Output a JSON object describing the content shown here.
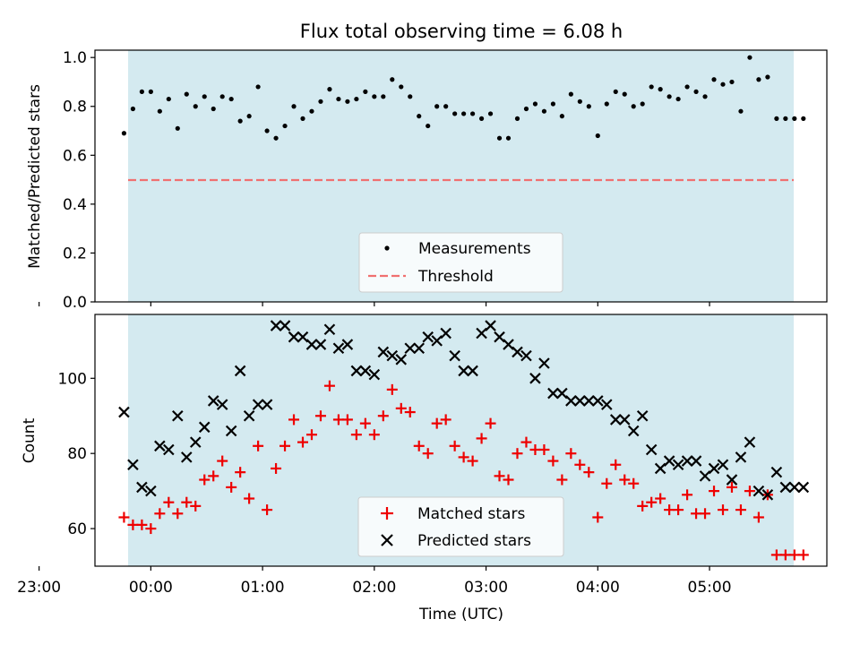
{
  "figure": {
    "title": "Flux total observing time = 6.08 h",
    "xlabel": "Time (UTC)",
    "time_ticks": [
      "23:00",
      "00:00",
      "01:00",
      "02:00",
      "03:00",
      "04:00",
      "05:00"
    ]
  },
  "chart_data": [
    {
      "type": "scatter",
      "panel": "top",
      "ylabel": "Matched/Predicted stars",
      "ylim": [
        0,
        1.03
      ],
      "yticks": [
        "0.0",
        "0.2",
        "0.4",
        "0.6",
        "0.8",
        "1.0"
      ],
      "xlim_hours": [
        -0.5,
        6.05
      ],
      "observing_window_hours": [
        -0.24,
        5.84
      ],
      "grid": false,
      "legend_position": "lower center",
      "series": [
        {
          "name": "Measurements",
          "x_hours": [
            -0.24,
            -0.16,
            -0.08,
            0.0,
            0.08,
            0.16,
            0.24,
            0.32,
            0.4,
            0.48,
            0.56,
            0.64,
            0.72,
            0.8,
            0.88,
            0.96,
            1.04,
            1.12,
            1.2,
            1.28,
            1.36,
            1.44,
            1.52,
            1.6,
            1.68,
            1.76,
            1.84,
            1.92,
            2.0,
            2.08,
            2.16,
            2.24,
            2.32,
            2.4,
            2.48,
            2.56,
            2.64,
            2.72,
            2.8,
            2.88,
            2.96,
            3.04,
            3.12,
            3.2,
            3.28,
            3.36,
            3.44,
            3.52,
            3.6,
            3.68,
            3.76,
            3.84,
            3.92,
            4.0,
            4.08,
            4.16,
            4.24,
            4.32,
            4.4,
            4.48,
            4.56,
            4.64,
            4.72,
            4.8,
            4.88,
            4.96,
            5.04,
            5.12,
            5.2,
            5.28,
            5.36,
            5.44,
            5.52,
            5.6,
            5.68,
            5.76,
            5.84
          ],
          "y": [
            0.69,
            0.79,
            0.86,
            0.86,
            0.78,
            0.83,
            0.71,
            0.85,
            0.8,
            0.84,
            0.79,
            0.84,
            0.83,
            0.74,
            0.76,
            0.88,
            0.7,
            0.67,
            0.72,
            0.8,
            0.75,
            0.78,
            0.82,
            0.87,
            0.83,
            0.82,
            0.83,
            0.86,
            0.84,
            0.84,
            0.91,
            0.88,
            0.84,
            0.76,
            0.72,
            0.8,
            0.8,
            0.77,
            0.77,
            0.77,
            0.75,
            0.77,
            0.67,
            0.67,
            0.75,
            0.79,
            0.81,
            0.78,
            0.81,
            0.76,
            0.85,
            0.82,
            0.8,
            0.68,
            0.81,
            0.86,
            0.85,
            0.8,
            0.81,
            0.88,
            0.87,
            0.84,
            0.83,
            0.88,
            0.86,
            0.84,
            0.91,
            0.89,
            0.9,
            0.78,
            1.0,
            0.91,
            0.92,
            0.75,
            0.75,
            0.75,
            0.75
          ]
        },
        {
          "name": "Threshold",
          "style": "dashed",
          "y_constant": 0.5
        }
      ]
    },
    {
      "type": "scatter",
      "panel": "bottom",
      "ylabel": "Count",
      "ylim": [
        50,
        117
      ],
      "yticks": [
        "60",
        "80",
        "100"
      ],
      "xlim_hours": [
        -0.5,
        6.05
      ],
      "observing_window_hours": [
        -0.24,
        5.84
      ],
      "grid": false,
      "legend_position": "lower center",
      "x_hours": [
        -0.24,
        -0.16,
        -0.08,
        0.0,
        0.08,
        0.16,
        0.24,
        0.32,
        0.4,
        0.48,
        0.56,
        0.64,
        0.72,
        0.8,
        0.88,
        0.96,
        1.04,
        1.12,
        1.2,
        1.28,
        1.36,
        1.44,
        1.52,
        1.6,
        1.68,
        1.76,
        1.84,
        1.92,
        2.0,
        2.08,
        2.16,
        2.24,
        2.32,
        2.4,
        2.48,
        2.56,
        2.64,
        2.72,
        2.8,
        2.88,
        2.96,
        3.04,
        3.12,
        3.2,
        3.28,
        3.36,
        3.44,
        3.52,
        3.6,
        3.68,
        3.76,
        3.84,
        3.92,
        4.0,
        4.08,
        4.16,
        4.24,
        4.32,
        4.4,
        4.48,
        4.56,
        4.64,
        4.72,
        4.8,
        4.88,
        4.96,
        5.04,
        5.12,
        5.2,
        5.28,
        5.36,
        5.44,
        5.52,
        5.6,
        5.68,
        5.76,
        5.84
      ],
      "series": [
        {
          "name": "Matched stars",
          "marker": "plus",
          "values": [
            63,
            61,
            61,
            60,
            64,
            67,
            64,
            67,
            66,
            73,
            74,
            78,
            71,
            75,
            68,
            82,
            65,
            76,
            82,
            89,
            83,
            85,
            90,
            98,
            89,
            89,
            85,
            88,
            85,
            90,
            97,
            92,
            91,
            82,
            80,
            88,
            89,
            82,
            79,
            78,
            84,
            88,
            74,
            73,
            80,
            83,
            81,
            81,
            78,
            73,
            80,
            77,
            75,
            63,
            72,
            77,
            73,
            72,
            66,
            67,
            68,
            65,
            65,
            69,
            64,
            64,
            70,
            65,
            71,
            65,
            70,
            63,
            69,
            53,
            53,
            53,
            53
          ]
        },
        {
          "name": "Predicted stars",
          "marker": "x",
          "values": [
            91,
            77,
            71,
            70,
            82,
            81,
            90,
            79,
            83,
            87,
            94,
            93,
            86,
            102,
            90,
            93,
            93,
            114,
            114,
            111,
            111,
            109,
            109,
            113,
            108,
            109,
            102,
            102,
            101,
            107,
            106,
            105,
            108,
            108,
            111,
            110,
            112,
            106,
            102,
            102,
            112,
            114,
            111,
            109,
            107,
            106,
            100,
            104,
            96,
            96,
            94,
            94,
            94,
            94,
            93,
            89,
            89,
            86,
            90,
            81,
            76,
            78,
            77,
            78,
            78,
            74,
            76,
            77,
            73,
            79,
            83,
            70,
            69,
            75,
            71,
            71,
            71
          ]
        }
      ]
    }
  ],
  "colors": {
    "band": "#d4eaf0",
    "measurement": "#000000",
    "threshold": "#f07070",
    "matched": "#ee0000",
    "predicted": "#000000"
  }
}
